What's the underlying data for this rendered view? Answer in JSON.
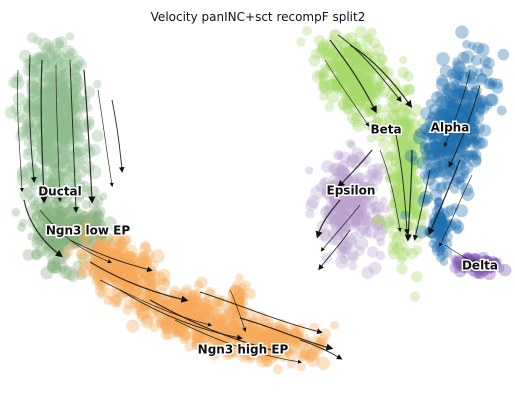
{
  "chart_data": {
    "type": "scatter",
    "title": "Velocity panINC+sct recompF split2",
    "xlabel": "",
    "ylabel": "",
    "grid": false,
    "axes_visible": false,
    "overlay": "velocity streamlines",
    "colors": {
      "Ductal": "#8fbc8f",
      "Ngn3 low EP": "#86b37e",
      "Ngn3 high EP": "#f6a85a",
      "Beta": "#a6d96a",
      "Alpha": "#1f6fb0",
      "Epsilon": "#b9a3cf",
      "Delta": "#7b52ae"
    },
    "clusters": [
      {
        "name": "Ductal"
      },
      {
        "name": "Ngn3 low EP"
      },
      {
        "name": "Ngn3 high EP"
      },
      {
        "name": "Beta"
      },
      {
        "name": "Alpha"
      },
      {
        "name": "Epsilon"
      },
      {
        "name": "Delta"
      }
    ]
  }
}
